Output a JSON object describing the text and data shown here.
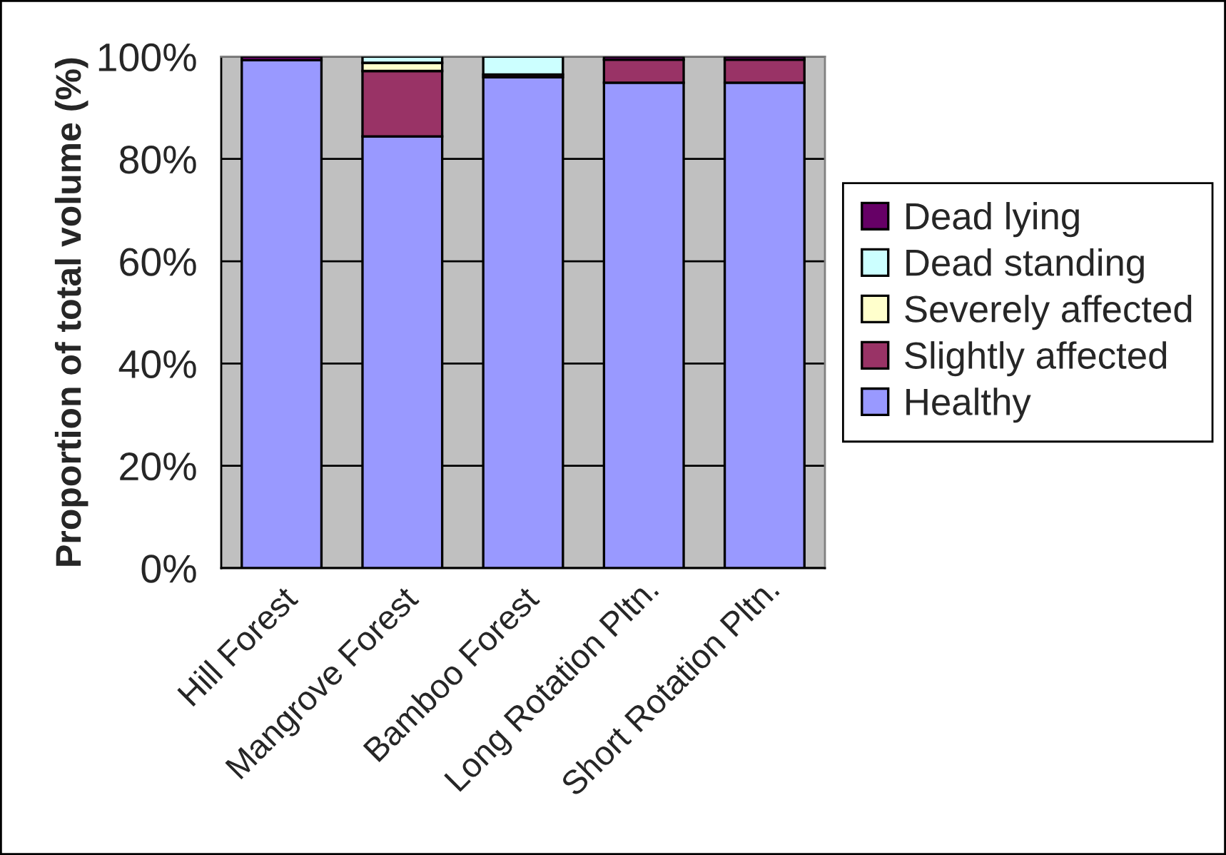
{
  "chart_data": {
    "type": "bar",
    "stacked": true,
    "categories": [
      "Hill Forest",
      "Mangrove Forest",
      "Bamboo Forest",
      "Long Rotation Pltn.",
      "Short Rotation Pltn."
    ],
    "ylabel": "Proportion of total volume (%)",
    "series": [
      {
        "name": "Healthy",
        "color": "#9999ff",
        "values": [
          99.3,
          84.4,
          96.0,
          94.9,
          94.9
        ]
      },
      {
        "name": "Slightly affected",
        "color": "#993366",
        "values": [
          null,
          12.8,
          0.5,
          4.5,
          4.5
        ]
      },
      {
        "name": "Severely affected",
        "color": "#ffffcc",
        "values": [
          null,
          1.6,
          null,
          null,
          null
        ]
      },
      {
        "name": "Dead standing",
        "color": "#ccffff",
        "values": [
          null,
          1.2,
          3.5,
          null,
          null
        ]
      },
      {
        "name": "Dead lying",
        "color": "#660066",
        "values": [
          0.7,
          null,
          null,
          0.6,
          0.6
        ]
      }
    ],
    "ylim": [
      0,
      100
    ],
    "yticks": [
      {
        "value": 0,
        "label": "0%"
      },
      {
        "value": 20,
        "label": "20%"
      },
      {
        "value": 40,
        "label": "40%"
      },
      {
        "value": 60,
        "label": "60%"
      },
      {
        "value": 80,
        "label": "80%"
      },
      {
        "value": 100,
        "label": "100%"
      }
    ],
    "grid": "y",
    "legend": "right"
  }
}
